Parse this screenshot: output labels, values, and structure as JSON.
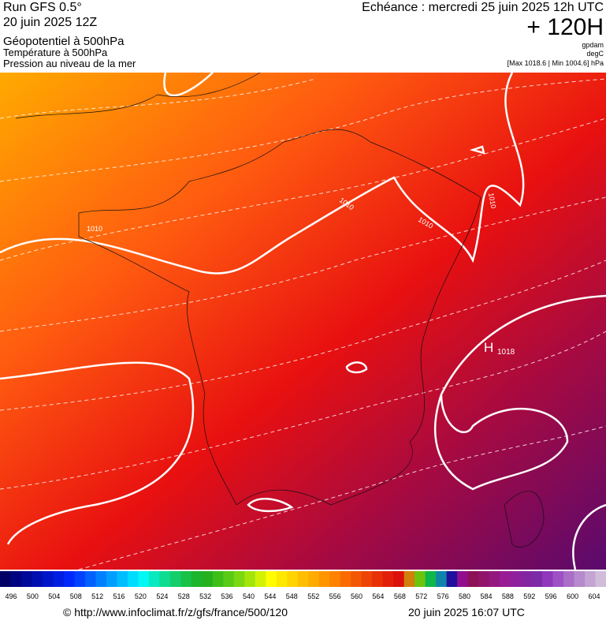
{
  "header": {
    "run": "Run GFS 0.5°",
    "run_date": "20 juin 2025 12Z",
    "field1": "Géopotentiel à 500hPa",
    "field2": "Température à 500hPa",
    "field3": "Pression au niveau de la mer",
    "valid": "Echéance : mercredi 25 juin 2025 12h UTC",
    "lead": "+ 120H",
    "unit1": "gpdam",
    "unit2": "degC",
    "range": "[Max 1018.6 | Min 1004.6] hPa"
  },
  "map": {
    "isobar_labels": [
      "1010",
      "1010",
      "1010",
      "1010"
    ],
    "high": "H",
    "high_value": "1018"
  },
  "colorbar": {
    "labels": [
      496,
      500,
      504,
      508,
      512,
      516,
      520,
      524,
      528,
      532,
      536,
      540,
      544,
      548,
      552,
      556,
      560,
      564,
      568,
      572,
      576,
      580,
      584,
      588,
      592,
      596,
      600,
      604
    ]
  },
  "footer": {
    "source": "© http://www.infoclimat.fr/z/gfs/france/500/120",
    "generated": "20 juin 2025 16:07 UTC"
  }
}
